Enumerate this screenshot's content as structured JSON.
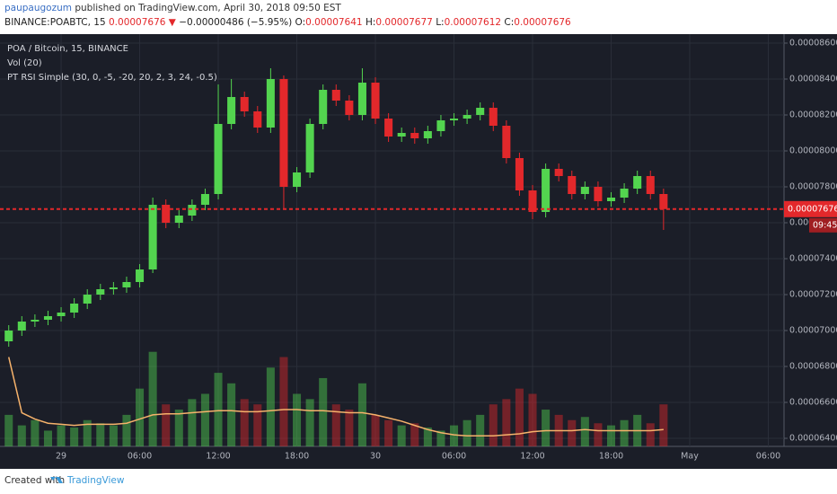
{
  "header": {
    "author": "paupaugozum",
    "published": " published on TradingView.com, April 30, 2018 09:50 EST",
    "symbol": "BINANCE:POABTC, 15 ",
    "last": "0.00007676",
    "arrow": " ▼ ",
    "change": "−0.00000486 (−5.95%) ",
    "ohlc": [
      {
        "key": "O:",
        "value": "0.00007641"
      },
      {
        "key": " H:",
        "value": "0.00007677"
      },
      {
        "key": " L:",
        "value": "0.00007612"
      },
      {
        "key": " C:",
        "value": "0.00007676"
      }
    ]
  },
  "chart_data": {
    "type": "candlestick",
    "title": "POA / Bitcoin, 15, BINANCE",
    "indicators": [
      "Vol (20)",
      "PT RSI Simple (30, 0, -5, -20, 20, 2, 3, 24, -0.5)"
    ],
    "up_color": "#53d44f",
    "down_color": "#e3282b",
    "volume_ma_color": "#f6b26b",
    "last_price_color": "#e3282b",
    "countdown_color": "#a01e22",
    "x": [
      "2018-04-28T20:00",
      "2018-04-28T21:00",
      "2018-04-28T22:00",
      "2018-04-28T23:00",
      "2018-04-29T00:00",
      "2018-04-29T01:00",
      "2018-04-29T02:00",
      "2018-04-29T03:00",
      "2018-04-29T04:00",
      "2018-04-29T05:00",
      "2018-04-29T06:00",
      "2018-04-29T07:00",
      "2018-04-29T08:00",
      "2018-04-29T09:00",
      "2018-04-29T10:00",
      "2018-04-29T11:00",
      "2018-04-29T12:00",
      "2018-04-29T13:00",
      "2018-04-29T14:00",
      "2018-04-29T15:00",
      "2018-04-29T16:00",
      "2018-04-29T17:00",
      "2018-04-29T18:00",
      "2018-04-29T19:00",
      "2018-04-29T20:00",
      "2018-04-29T21:00",
      "2018-04-29T22:00",
      "2018-04-29T23:00",
      "2018-04-30T00:00",
      "2018-04-30T01:00",
      "2018-04-30T02:00",
      "2018-04-30T03:00",
      "2018-04-30T04:00",
      "2018-04-30T05:00",
      "2018-04-30T06:00",
      "2018-04-30T07:00",
      "2018-04-30T08:00",
      "2018-04-30T09:00",
      "2018-04-30T10:00",
      "2018-04-30T11:00",
      "2018-04-30T12:00",
      "2018-04-30T13:00",
      "2018-04-30T14:00",
      "2018-04-30T15:00",
      "2018-04-30T16:00",
      "2018-04-30T17:00",
      "2018-04-30T18:00",
      "2018-04-30T19:00",
      "2018-04-30T20:00",
      "2018-04-30T21:00",
      "2018-04-30T22:00"
    ],
    "open": [
      6.94e-05,
      7e-05,
      7.05e-05,
      7.06e-05,
      7.08e-05,
      7.1e-05,
      7.15e-05,
      7.2e-05,
      7.23e-05,
      7.24e-05,
      7.27e-05,
      7.34e-05,
      7.7e-05,
      7.6e-05,
      7.64e-05,
      7.7e-05,
      7.76e-05,
      8.15e-05,
      8.3e-05,
      8.22e-05,
      8.13e-05,
      8.4e-05,
      7.8e-05,
      7.88e-05,
      8.15e-05,
      8.34e-05,
      8.28e-05,
      8.2e-05,
      8.38e-05,
      8.18e-05,
      8.08e-05,
      8.1e-05,
      8.07e-05,
      8.11e-05,
      8.17e-05,
      8.18e-05,
      8.2e-05,
      8.24e-05,
      8.14e-05,
      7.96e-05,
      7.78e-05,
      7.66e-05,
      7.9e-05,
      7.86e-05,
      7.76e-05,
      7.8e-05,
      7.72e-05,
      7.74e-05,
      7.79e-05,
      7.86e-05,
      7.76e-05
    ],
    "high": [
      7.03e-05,
      7.08e-05,
      7.09e-05,
      7.11e-05,
      7.13e-05,
      7.18e-05,
      7.23e-05,
      7.26e-05,
      7.27e-05,
      7.3e-05,
      7.37e-05,
      7.74e-05,
      7.73e-05,
      7.67e-05,
      7.73e-05,
      7.79e-05,
      8.37e-05,
      8.4e-05,
      8.33e-05,
      8.25e-05,
      8.46e-05,
      8.42e-05,
      7.91e-05,
      8.18e-05,
      8.37e-05,
      8.37e-05,
      8.31e-05,
      8.46e-05,
      8.41e-05,
      8.21e-05,
      8.13e-05,
      8.13e-05,
      8.14e-05,
      8.2e-05,
      8.21e-05,
      8.23e-05,
      8.27e-05,
      8.27e-05,
      8.17e-05,
      7.99e-05,
      7.81e-05,
      7.93e-05,
      7.93e-05,
      7.89e-05,
      7.83e-05,
      7.83e-05,
      7.77e-05,
      7.82e-05,
      7.89e-05,
      7.89e-05,
      7.79e-05
    ],
    "low": [
      6.91e-05,
      6.97e-05,
      7.02e-05,
      7.03e-05,
      7.05e-05,
      7.07e-05,
      7.12e-05,
      7.17e-05,
      7.2e-05,
      7.21e-05,
      7.24e-05,
      7.32e-05,
      7.57e-05,
      7.57e-05,
      7.61e-05,
      7.67e-05,
      7.73e-05,
      8.12e-05,
      8.19e-05,
      8.1e-05,
      8.1e-05,
      7.68e-05,
      7.77e-05,
      7.85e-05,
      8.12e-05,
      8.25e-05,
      8.17e-05,
      8.17e-05,
      8.15e-05,
      8.05e-05,
      8.05e-05,
      8.04e-05,
      8.04e-05,
      8.08e-05,
      8.14e-05,
      8.15e-05,
      8.17e-05,
      8.11e-05,
      7.93e-05,
      7.75e-05,
      7.62e-05,
      7.63e-05,
      7.83e-05,
      7.73e-05,
      7.73e-05,
      7.69e-05,
      7.69e-05,
      7.71e-05,
      7.76e-05,
      7.73e-05,
      7.56e-05
    ],
    "close": [
      7e-05,
      7.05e-05,
      7.06e-05,
      7.08e-05,
      7.1e-05,
      7.15e-05,
      7.2e-05,
      7.23e-05,
      7.24e-05,
      7.27e-05,
      7.34e-05,
      7.7e-05,
      7.6e-05,
      7.64e-05,
      7.7e-05,
      7.76e-05,
      8.15e-05,
      8.3e-05,
      8.22e-05,
      8.13e-05,
      8.4e-05,
      7.8e-05,
      7.88e-05,
      8.15e-05,
      8.34e-05,
      8.28e-05,
      8.2e-05,
      8.38e-05,
      8.18e-05,
      8.08e-05,
      8.1e-05,
      8.07e-05,
      8.11e-05,
      8.17e-05,
      8.18e-05,
      8.2e-05,
      8.24e-05,
      8.14e-05,
      7.96e-05,
      7.78e-05,
      7.66e-05,
      7.9e-05,
      7.86e-05,
      7.76e-05,
      7.8e-05,
      7.72e-05,
      7.74e-05,
      7.79e-05,
      7.86e-05,
      7.76e-05,
      7.676e-05
    ],
    "volume": [
      30,
      20,
      25,
      15,
      20,
      18,
      25,
      22,
      20,
      30,
      55,
      90,
      40,
      35,
      45,
      50,
      70,
      60,
      45,
      40,
      75,
      85,
      50,
      45,
      65,
      40,
      35,
      60,
      30,
      25,
      20,
      22,
      18,
      15,
      20,
      25,
      30,
      40,
      45,
      55,
      50,
      35,
      30,
      25,
      28,
      22,
      20,
      25,
      30,
      22,
      40
    ],
    "volume_ma": [
      85,
      32,
      26,
      22,
      21,
      20,
      21,
      21,
      21,
      22,
      26,
      30,
      31,
      31,
      32,
      33,
      34,
      34,
      33,
      33,
      34,
      35,
      35,
      34,
      34,
      33,
      32,
      32,
      30,
      27,
      24,
      20,
      16,
      13,
      11,
      10,
      10,
      10,
      11,
      12,
      14,
      15,
      15,
      15,
      16,
      15,
      15,
      15,
      15,
      15,
      16
    ],
    "vlim": [
      0,
      100
    ],
    "last_price": 7.676e-05,
    "countdown": "09:45",
    "xlim": [
      "2018-04-28T19:20",
      "2018-05-01T07:12"
    ],
    "xticks": [
      {
        "value": "2018-04-29T00:00",
        "label": "29"
      },
      {
        "value": "2018-04-29T06:00",
        "label": "06:00"
      },
      {
        "value": "2018-04-29T12:00",
        "label": "12:00"
      },
      {
        "value": "2018-04-29T18:00",
        "label": "18:00"
      },
      {
        "value": "2018-04-30T00:00",
        "label": "30"
      },
      {
        "value": "2018-04-30T06:00",
        "label": "06:00"
      },
      {
        "value": "2018-04-30T12:00",
        "label": "12:00"
      },
      {
        "value": "2018-04-30T18:00",
        "label": "18:00"
      },
      {
        "value": "2018-05-01T00:00",
        "label": "May"
      },
      {
        "value": "2018-05-01T06:00",
        "label": "06:00"
      }
    ],
    "ylim": [
      6.355e-05,
      8.65e-05
    ],
    "yticks": [
      {
        "value": 6.4e-05,
        "label": "0.00006400"
      },
      {
        "value": 6.6e-05,
        "label": "0.00006600"
      },
      {
        "value": 6.8e-05,
        "label": "0.00006800"
      },
      {
        "value": 7e-05,
        "label": "0.00007000"
      },
      {
        "value": 7.2e-05,
        "label": "0.00007200"
      },
      {
        "value": 7.4e-05,
        "label": "0.00007400"
      },
      {
        "value": 7.6e-05,
        "label": "0.00007600"
      },
      {
        "value": 7.8e-05,
        "label": "0.00007800"
      },
      {
        "value": 8e-05,
        "label": "0.00008000"
      },
      {
        "value": 8.2e-05,
        "label": "0.00008200"
      },
      {
        "value": 8.4e-05,
        "label": "0.00008400"
      },
      {
        "value": 8.6e-05,
        "label": "0.00008600"
      }
    ],
    "grid": true
  },
  "footer": {
    "created": "Created with",
    "brand": "TradingView"
  }
}
